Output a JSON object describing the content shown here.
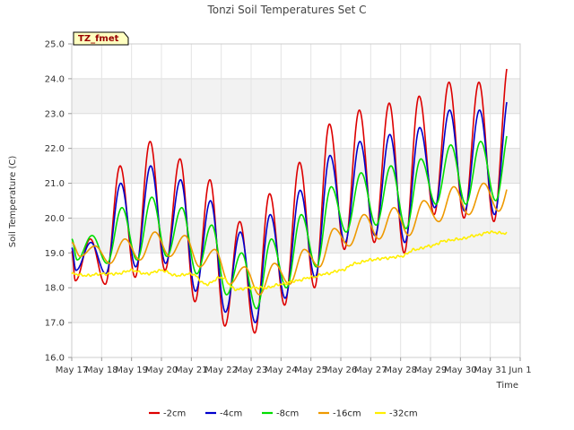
{
  "chart_data": {
    "type": "line",
    "title": "Tonzi Soil Temperatures Set C",
    "xlabel": "Time",
    "ylabel": "Soil Temperature (C)",
    "badge": "TZ_fmet",
    "ylim": [
      16.0,
      25.0
    ],
    "xlim": [
      "May 17",
      "Jun 1"
    ],
    "y_ticks": [
      "16.0",
      "17.0",
      "18.0",
      "19.0",
      "20.0",
      "21.0",
      "22.0",
      "23.0",
      "24.0",
      "25.0"
    ],
    "x_ticks": [
      "May 17",
      "May 18",
      "May 19",
      "May 20",
      "May 21",
      "May 22",
      "May 23",
      "May 24",
      "May 25",
      "May 26",
      "May 27",
      "May 28",
      "May 29",
      "May 30",
      "May 31",
      "Jun 1"
    ],
    "grid": true,
    "legend_position": "bottom",
    "days": [
      "May 17",
      "May 18",
      "May 19",
      "May 20",
      "May 21",
      "May 22",
      "May 23",
      "May 24",
      "May 25",
      "May 26",
      "May 27",
      "May 28",
      "May 29",
      "May 30",
      "May 31"
    ],
    "series": [
      {
        "name": "-2cm",
        "color": "#dd0000",
        "daily_max": [
          19.4,
          21.5,
          22.2,
          21.7,
          21.1,
          19.9,
          20.7,
          21.6,
          22.7,
          23.1,
          23.3,
          23.5,
          23.9,
          23.9,
          24.5
        ],
        "daily_min": [
          18.2,
          18.1,
          18.3,
          18.5,
          17.6,
          16.9,
          16.7,
          17.5,
          18.0,
          19.1,
          19.3,
          19.0,
          20.1,
          20.0,
          19.9
        ]
      },
      {
        "name": "-4cm",
        "color": "#0000cc",
        "daily_max": [
          19.3,
          21.0,
          21.5,
          21.1,
          20.5,
          19.6,
          20.1,
          20.8,
          21.8,
          22.2,
          22.4,
          22.6,
          23.1,
          23.1,
          23.6
        ],
        "daily_min": [
          18.5,
          18.4,
          18.6,
          18.7,
          17.9,
          17.3,
          17.0,
          17.7,
          18.3,
          19.3,
          19.5,
          19.3,
          20.3,
          20.2,
          20.1
        ]
      },
      {
        "name": "-8cm",
        "color": "#00dd00",
        "daily_max": [
          19.5,
          20.3,
          20.6,
          20.3,
          19.8,
          19.0,
          19.4,
          20.1,
          20.9,
          21.3,
          21.5,
          21.7,
          22.1,
          22.2,
          22.7
        ],
        "daily_min": [
          18.8,
          18.7,
          18.8,
          18.9,
          18.4,
          17.8,
          17.4,
          18.0,
          18.6,
          19.6,
          19.8,
          19.7,
          20.4,
          20.4,
          20.5
        ]
      },
      {
        "name": "-16cm",
        "color": "#ee9900",
        "daily_max": [
          19.2,
          19.4,
          19.6,
          19.5,
          19.1,
          18.6,
          18.7,
          19.1,
          19.7,
          20.1,
          20.3,
          20.5,
          20.9,
          21.0,
          21.3
        ],
        "daily_min": [
          18.9,
          18.7,
          18.8,
          18.9,
          18.6,
          18.1,
          17.8,
          18.1,
          18.6,
          19.2,
          19.4,
          19.5,
          19.9,
          20.1,
          20.2
        ]
      },
      {
        "name": "-32cm",
        "color": "#ffee00",
        "daily_max": [
          18.4,
          18.4,
          18.5,
          18.5,
          18.4,
          18.3,
          18.0,
          18.1,
          18.3,
          18.5,
          18.8,
          18.9,
          19.2,
          19.4,
          19.6
        ],
        "daily_min": [
          18.3,
          18.35,
          18.4,
          18.4,
          18.35,
          18.1,
          17.95,
          18.0,
          18.2,
          18.4,
          18.7,
          18.85,
          19.1,
          19.35,
          19.5
        ]
      }
    ]
  }
}
